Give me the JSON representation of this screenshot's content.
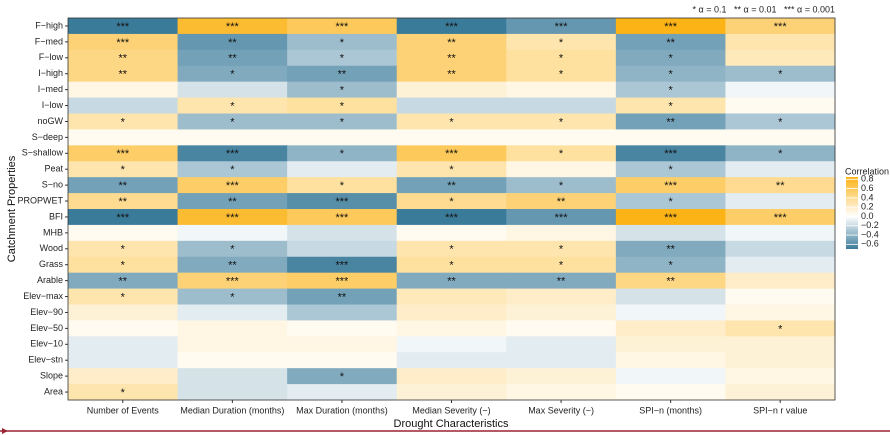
{
  "chart_data": {
    "type": "heatmap",
    "x_label": "Drought Characteristics",
    "y_label": "Catchment Properties",
    "significance_note": "* α = 0.1   ** α = 0.01   *** α = 0.001",
    "legend_title": "Correlation",
    "x_categories": [
      "Number of Events",
      "Median Duration (months)",
      "Max Duration (months)",
      "Median Severity (−)",
      "Max Severity (−)",
      "SPI−n (months)",
      "SPI−n r value"
    ],
    "y_categories": [
      "F−high",
      "F−med",
      "F−low",
      "I−high",
      "I−med",
      "I−low",
      "noGW",
      "S−deep",
      "S−shallow",
      "Peat",
      "S−no",
      "PROPWET",
      "BFI",
      "MHB",
      "Wood",
      "Grass",
      "Arable",
      "Elev−max",
      "Elev−90",
      "Elev−50",
      "Elev−10",
      "Elev−stn",
      "Slope",
      "Area"
    ],
    "values": [
      [
        -0.7,
        0.75,
        0.6,
        -0.7,
        -0.55,
        0.85,
        0.5
      ],
      [
        0.5,
        -0.55,
        -0.35,
        0.5,
        0.3,
        -0.5,
        0.3
      ],
      [
        0.45,
        -0.5,
        -0.3,
        0.5,
        0.35,
        -0.45,
        0.25
      ],
      [
        0.45,
        -0.45,
        -0.5,
        0.5,
        0.35,
        -0.4,
        -0.35
      ],
      [
        0.1,
        -0.15,
        -0.35,
        0.15,
        0.1,
        -0.3,
        -0.05
      ],
      [
        -0.2,
        0.3,
        0.35,
        -0.2,
        -0.2,
        0.3,
        0.05
      ],
      [
        0.3,
        -0.35,
        -0.35,
        0.3,
        0.3,
        -0.5,
        -0.3
      ],
      [
        0.05,
        0.05,
        0.05,
        0.05,
        0.05,
        0.05,
        0.05
      ],
      [
        0.55,
        -0.65,
        -0.4,
        0.6,
        0.35,
        -0.65,
        -0.4
      ],
      [
        0.3,
        -0.3,
        -0.1,
        0.3,
        0.1,
        -0.3,
        -0.1
      ],
      [
        -0.5,
        0.55,
        0.35,
        -0.5,
        -0.35,
        0.55,
        0.4
      ],
      [
        0.4,
        -0.5,
        -0.6,
        0.4,
        0.5,
        -0.3,
        -0.1
      ],
      [
        -0.7,
        0.75,
        0.6,
        -0.7,
        -0.55,
        0.85,
        0.55
      ],
      [
        0.05,
        -0.05,
        -0.15,
        0.05,
        0.1,
        -0.15,
        -0.05
      ],
      [
        0.3,
        -0.35,
        -0.2,
        0.3,
        0.3,
        -0.45,
        -0.2
      ],
      [
        0.35,
        -0.45,
        -0.65,
        0.35,
        0.35,
        -0.4,
        -0.1
      ],
      [
        -0.45,
        0.5,
        0.55,
        -0.45,
        -0.45,
        0.45,
        0.2
      ],
      [
        0.3,
        -0.35,
        -0.5,
        0.25,
        0.2,
        -0.15,
        0.05
      ],
      [
        0.15,
        -0.1,
        -0.3,
        0.2,
        0.15,
        -0.05,
        0.1
      ],
      [
        0.05,
        0.1,
        0.05,
        0.1,
        0.05,
        0.2,
        0.3
      ],
      [
        -0.1,
        0.1,
        0.1,
        -0.05,
        -0.1,
        0.15,
        0.15
      ],
      [
        -0.1,
        0.05,
        0.05,
        -0.1,
        -0.1,
        0.1,
        0.15
      ],
      [
        0.2,
        -0.15,
        -0.45,
        0.2,
        0.15,
        -0.05,
        0.1
      ],
      [
        0.3,
        -0.15,
        -0.1,
        0.15,
        0.1,
        0.05,
        0.15
      ]
    ],
    "stars": [
      [
        "***",
        "***",
        "***",
        "***",
        "***",
        "***",
        "***"
      ],
      [
        "***",
        "**",
        "*",
        "**",
        "*",
        "**",
        null
      ],
      [
        "**",
        "**",
        "*",
        "**",
        "*",
        "*",
        null
      ],
      [
        "**",
        "*",
        "**",
        "**",
        "*",
        "*",
        "*"
      ],
      [
        null,
        null,
        "*",
        null,
        null,
        "*",
        null
      ],
      [
        null,
        "*",
        "*",
        null,
        null,
        "*",
        null
      ],
      [
        "*",
        "*",
        "*",
        "*",
        "*",
        "**",
        "*"
      ],
      [
        null,
        null,
        null,
        null,
        null,
        null,
        null
      ],
      [
        "***",
        "***",
        "*",
        "***",
        "*",
        "***",
        "*"
      ],
      [
        "*",
        "*",
        null,
        "*",
        null,
        "*",
        null
      ],
      [
        "**",
        "***",
        "*",
        "**",
        "*",
        "***",
        "**"
      ],
      [
        "**",
        "**",
        "***",
        "*",
        "**",
        "*",
        null
      ],
      [
        "***",
        "***",
        "***",
        "***",
        "***",
        "***",
        "***"
      ],
      [
        null,
        null,
        null,
        null,
        null,
        null,
        null
      ],
      [
        "*",
        "*",
        null,
        "*",
        "*",
        "**",
        null
      ],
      [
        "*",
        "**",
        "***",
        "*",
        "*",
        "*",
        null
      ],
      [
        "**",
        "***",
        "***",
        "**",
        "**",
        "**",
        null
      ],
      [
        "*",
        "*",
        "**",
        null,
        null,
        null,
        null
      ],
      [
        null,
        null,
        null,
        null,
        null,
        null,
        null
      ],
      [
        null,
        null,
        null,
        null,
        null,
        null,
        "*"
      ],
      [
        null,
        null,
        null,
        null,
        null,
        null,
        null
      ],
      [
        null,
        null,
        null,
        null,
        null,
        null,
        null
      ],
      [
        null,
        null,
        "*",
        null,
        null,
        null,
        null
      ],
      [
        "*",
        null,
        null,
        null,
        null,
        null,
        null
      ]
    ],
    "colors": {
      "low": "#3b7b9a",
      "mid": "#ffffff",
      "high": "#fcb316"
    },
    "clim": [
      -0.7,
      0.85
    ],
    "cticks": [
      0.8,
      0.6,
      0.4,
      0.2,
      {
        "value": 0,
        "label": "0.0"
      },
      {
        "value": -0.2,
        "label": "−0.2"
      },
      {
        "value": -0.4,
        "label": "−0.4"
      },
      {
        "value": -0.6,
        "label": "−0.6"
      }
    ]
  }
}
